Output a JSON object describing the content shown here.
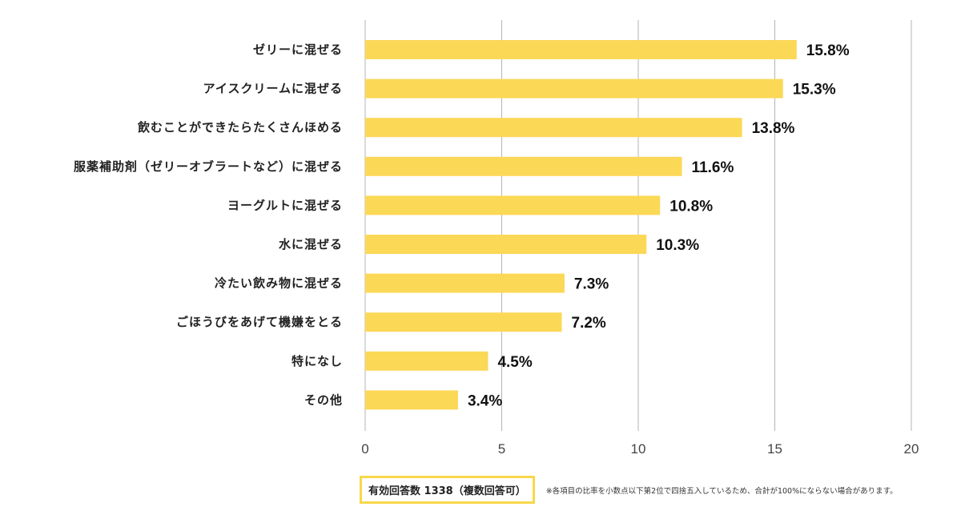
{
  "chart_data": {
    "type": "bar",
    "orientation": "horizontal",
    "categories": [
      "ゼリーに混ぜる",
      "アイスクリームに混ぜる",
      "飲むことができたらたくさんほめる",
      "服薬補助剤（ゼリーオブラートなど）に混ぜる",
      "ヨーグルトに混ぜる",
      "水に混ぜる",
      "冷たい飲み物に混ぜる",
      "ごほうびをあげて機嫌をとる",
      "特になし",
      "その他"
    ],
    "values": [
      15.8,
      15.3,
      13.8,
      11.6,
      10.8,
      10.3,
      7.3,
      7.2,
      4.5,
      3.4
    ],
    "value_labels": [
      "15.8%",
      "15.3%",
      "13.8%",
      "11.6%",
      "10.8%",
      "10.3%",
      "7.3%",
      "7.2%",
      "4.5%",
      "3.4%"
    ],
    "xlim": [
      0,
      20
    ],
    "xticks": [
      "0",
      "5",
      "10",
      "15",
      "20"
    ],
    "grid": true,
    "bar_color": "#fcd857"
  },
  "footer": {
    "sample_size": "有効回答数 1338（複数回答可）",
    "note": "※各項目の比率を小数点以下第2位で四捨五入しているため、合計が100%にならない場合があります。"
  },
  "colors": {
    "box_border": "#f7d84a"
  }
}
